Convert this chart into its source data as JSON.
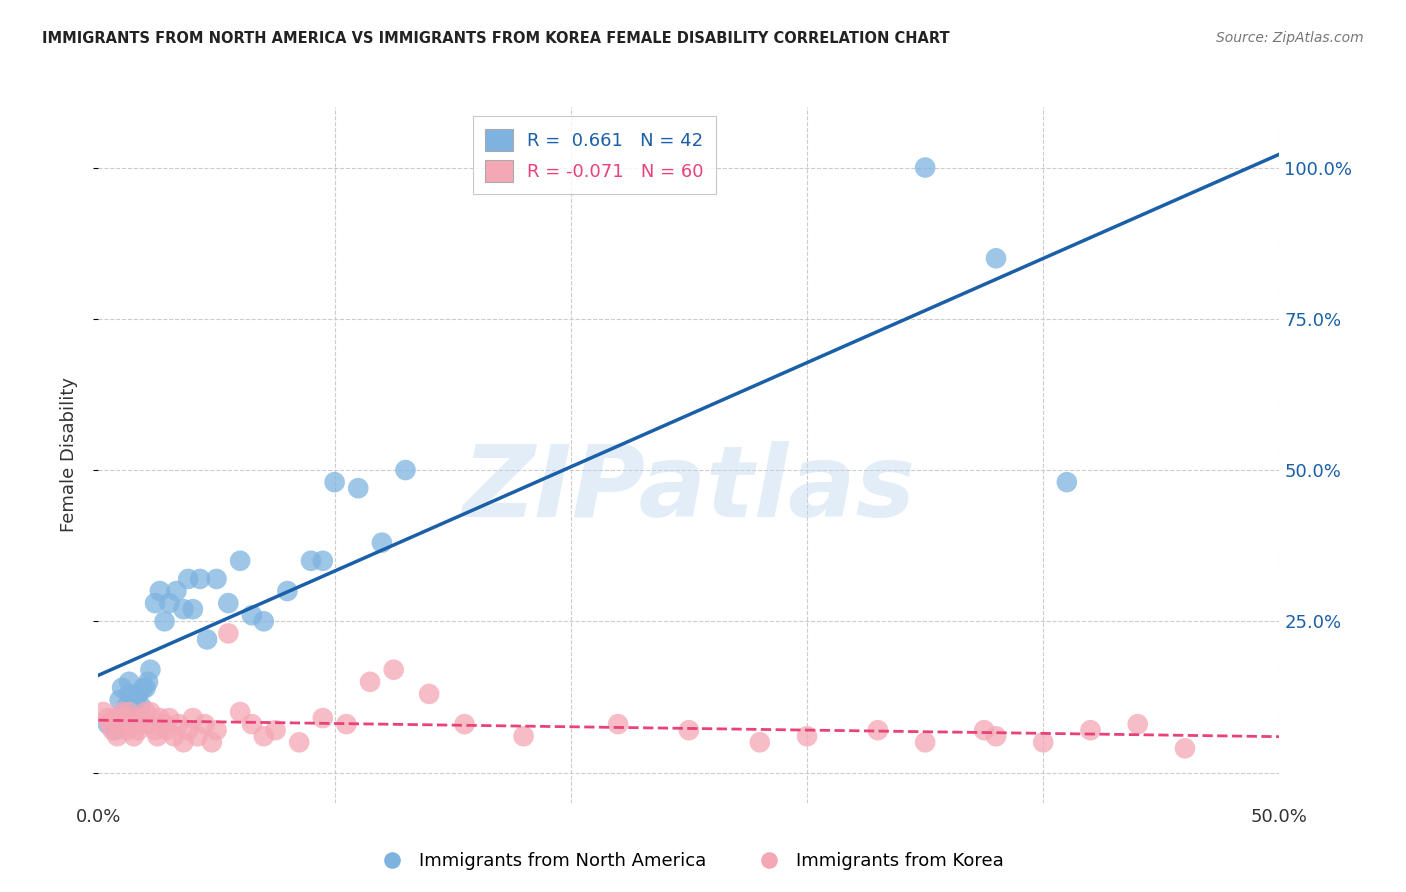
{
  "title": "IMMIGRANTS FROM NORTH AMERICA VS IMMIGRANTS FROM KOREA FEMALE DISABILITY CORRELATION CHART",
  "source": "Source: ZipAtlas.com",
  "ylabel": "Female Disability",
  "xlim": [
    0.0,
    0.5
  ],
  "ylim": [
    -0.05,
    1.1
  ],
  "blue_R": 0.661,
  "blue_N": 42,
  "pink_R": -0.071,
  "pink_N": 60,
  "legend_label_blue": "Immigrants from North America",
  "legend_label_pink": "Immigrants from Korea",
  "blue_color": "#7EB3E0",
  "pink_color": "#F4A7B5",
  "blue_line_color": "#1A5FA8",
  "pink_line_color": "#E84278",
  "watermark": "ZIPatlas",
  "blue_x": [
    0.004,
    0.007,
    0.008,
    0.009,
    0.01,
    0.011,
    0.012,
    0.013,
    0.013,
    0.015,
    0.016,
    0.017,
    0.018,
    0.019,
    0.02,
    0.021,
    0.022,
    0.024,
    0.026,
    0.028,
    0.03,
    0.033,
    0.036,
    0.038,
    0.04,
    0.043,
    0.046,
    0.05,
    0.055,
    0.06,
    0.065,
    0.07,
    0.08,
    0.09,
    0.095,
    0.1,
    0.11,
    0.12,
    0.13,
    0.35,
    0.38,
    0.41
  ],
  "blue_y": [
    0.08,
    0.07,
    0.09,
    0.12,
    0.14,
    0.1,
    0.11,
    0.13,
    0.15,
    0.1,
    0.12,
    0.13,
    0.11,
    0.14,
    0.14,
    0.15,
    0.17,
    0.28,
    0.3,
    0.25,
    0.28,
    0.3,
    0.27,
    0.32,
    0.27,
    0.32,
    0.22,
    0.32,
    0.28,
    0.35,
    0.26,
    0.25,
    0.3,
    0.35,
    0.35,
    0.48,
    0.47,
    0.38,
    0.5,
    1.0,
    0.85,
    0.48
  ],
  "pink_x": [
    0.002,
    0.004,
    0.005,
    0.006,
    0.007,
    0.008,
    0.009,
    0.01,
    0.011,
    0.012,
    0.013,
    0.014,
    0.015,
    0.015,
    0.016,
    0.017,
    0.018,
    0.02,
    0.021,
    0.022,
    0.024,
    0.025,
    0.026,
    0.028,
    0.029,
    0.03,
    0.032,
    0.034,
    0.036,
    0.038,
    0.04,
    0.042,
    0.045,
    0.048,
    0.05,
    0.055,
    0.06,
    0.065,
    0.07,
    0.075,
    0.085,
    0.095,
    0.105,
    0.115,
    0.125,
    0.14,
    0.155,
    0.18,
    0.22,
    0.25,
    0.28,
    0.3,
    0.33,
    0.35,
    0.375,
    0.38,
    0.4,
    0.42,
    0.44,
    0.46
  ],
  "pink_y": [
    0.1,
    0.09,
    0.08,
    0.07,
    0.09,
    0.06,
    0.08,
    0.1,
    0.09,
    0.07,
    0.1,
    0.08,
    0.09,
    0.06,
    0.08,
    0.07,
    0.09,
    0.1,
    0.08,
    0.1,
    0.07,
    0.06,
    0.09,
    0.08,
    0.07,
    0.09,
    0.06,
    0.08,
    0.05,
    0.07,
    0.09,
    0.06,
    0.08,
    0.05,
    0.07,
    0.23,
    0.1,
    0.08,
    0.06,
    0.07,
    0.05,
    0.09,
    0.08,
    0.15,
    0.17,
    0.13,
    0.08,
    0.06,
    0.08,
    0.07,
    0.05,
    0.06,
    0.07,
    0.05,
    0.07,
    0.06,
    0.05,
    0.07,
    0.08,
    0.04
  ],
  "background_color": "#FFFFFF",
  "grid_color": "#CCCCCC"
}
